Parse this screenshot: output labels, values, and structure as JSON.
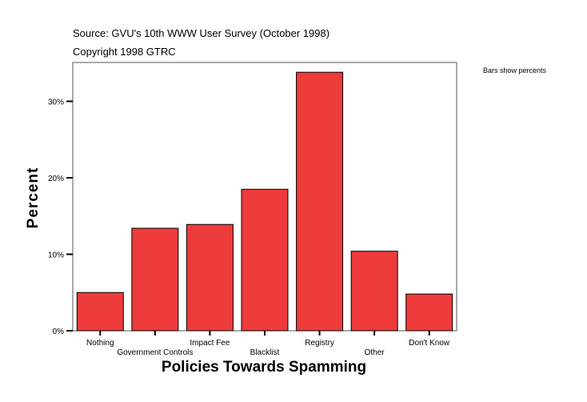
{
  "chart_data": {
    "type": "bar",
    "source": "Source: GVU's 10th WWW User Survey (October 1998)",
    "copyright": "Copyright 1998 GTRC",
    "note": "Bars show percents",
    "xlabel": "Policies Towards Spamming",
    "ylabel": "Percent",
    "categories": [
      "Nothing",
      "Government Controls",
      "Impact Fee",
      "Blacklist",
      "Registry",
      "Other",
      "Don't Know"
    ],
    "values": [
      5.0,
      13.4,
      13.9,
      18.5,
      33.8,
      10.4,
      4.8
    ],
    "ylim": [
      0,
      35
    ],
    "yticks": [
      0,
      10,
      20,
      30
    ],
    "ytick_labels": [
      "0%",
      "10%",
      "20%",
      "30%"
    ],
    "grid": false,
    "bar_color": "#EE3B3B"
  }
}
